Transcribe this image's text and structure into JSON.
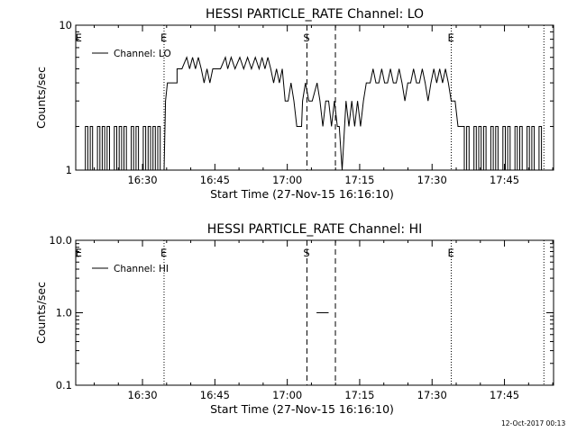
{
  "footer": {
    "timestamp": "12-Oct-2017 00:13"
  },
  "chart_data": [
    {
      "type": "line",
      "title": "HESSI PARTICLE_RATE Channel: LO",
      "xlabel": "Start Time (27-Nov-15 16:16:10)",
      "ylabel": "Counts/sec",
      "x_unit": "minutes after 16:16:10",
      "xlim": [
        0,
        99
      ],
      "ylim": [
        1,
        10
      ],
      "yscale": "log",
      "x_ticks": [
        {
          "x": 13.83,
          "label": "16:30"
        },
        {
          "x": 28.83,
          "label": "16:45"
        },
        {
          "x": 43.83,
          "label": "17:00"
        },
        {
          "x": 58.83,
          "label": "17:15"
        },
        {
          "x": 73.83,
          "label": "17:30"
        },
        {
          "x": 88.83,
          "label": "17:45"
        }
      ],
      "y_ticks": [
        {
          "y": 1,
          "label": "1"
        },
        {
          "y": 10,
          "label": "10"
        }
      ],
      "legend": {
        "position": "top-left",
        "entries": [
          "Channel: LO"
        ]
      },
      "markers": [
        {
          "x": 18.3,
          "style": "dotted",
          "label": "E"
        },
        {
          "x": 47.9,
          "style": "dashed",
          "label": "S"
        },
        {
          "x": 53.8,
          "style": "dashed",
          "label": ""
        },
        {
          "x": 77.8,
          "style": "dotted",
          "label": "E"
        },
        {
          "x": 97.0,
          "style": "dotted",
          "label": ""
        }
      ],
      "edge_labels": [
        {
          "x": 0.3,
          "label": "E"
        }
      ],
      "series": [
        {
          "name": "Channel: LO",
          "values": [
            [
              0,
              1
            ],
            [
              2,
              1
            ],
            [
              2,
              2
            ],
            [
              2.5,
              2
            ],
            [
              2.5,
              1
            ],
            [
              3,
              1
            ],
            [
              3,
              2
            ],
            [
              3.5,
              2
            ],
            [
              3.5,
              1
            ],
            [
              4.5,
              1
            ],
            [
              4.5,
              2
            ],
            [
              5,
              2
            ],
            [
              5,
              1
            ],
            [
              5.5,
              1
            ],
            [
              5.5,
              2
            ],
            [
              6,
              2
            ],
            [
              6,
              1
            ],
            [
              6.5,
              1
            ],
            [
              6.5,
              2
            ],
            [
              7,
              2
            ],
            [
              7,
              1
            ],
            [
              8,
              1
            ],
            [
              8,
              2
            ],
            [
              8.5,
              2
            ],
            [
              8.5,
              1
            ],
            [
              9,
              1
            ],
            [
              9,
              2
            ],
            [
              9.5,
              2
            ],
            [
              9.5,
              1
            ],
            [
              10,
              1
            ],
            [
              10,
              2
            ],
            [
              10.5,
              2
            ],
            [
              10.5,
              1
            ],
            [
              11.5,
              1
            ],
            [
              11.5,
              2
            ],
            [
              12,
              2
            ],
            [
              12,
              1
            ],
            [
              12.5,
              1
            ],
            [
              12.5,
              2
            ],
            [
              13,
              2
            ],
            [
              13,
              1
            ],
            [
              14,
              1
            ],
            [
              14,
              2
            ],
            [
              14.5,
              2
            ],
            [
              14.5,
              1
            ],
            [
              15,
              1
            ],
            [
              15,
              2
            ],
            [
              15.5,
              2
            ],
            [
              15.5,
              1
            ],
            [
              16,
              1
            ],
            [
              16,
              2
            ],
            [
              16.5,
              2
            ],
            [
              16.5,
              1
            ],
            [
              17,
              1
            ],
            [
              17,
              2
            ],
            [
              17.5,
              2
            ],
            [
              17.5,
              1
            ],
            [
              18,
              1
            ],
            [
              18.3,
              1
            ],
            [
              18.6,
              3
            ],
            [
              19,
              4
            ],
            [
              21,
              4
            ],
            [
              21,
              5
            ],
            [
              22,
              5
            ],
            [
              23,
              6
            ],
            [
              23.6,
              5
            ],
            [
              24.2,
              6
            ],
            [
              24.8,
              5
            ],
            [
              25.4,
              6
            ],
            [
              26,
              5
            ],
            [
              26.6,
              4
            ],
            [
              27.2,
              5
            ],
            [
              27.8,
              4
            ],
            [
              28.4,
              5
            ],
            [
              30,
              5
            ],
            [
              31,
              6
            ],
            [
              31.5,
              5
            ],
            [
              32.2,
              6
            ],
            [
              33,
              5
            ],
            [
              34,
              6
            ],
            [
              34.8,
              5
            ],
            [
              35.6,
              6
            ],
            [
              36.4,
              5
            ],
            [
              37.2,
              6
            ],
            [
              38,
              5
            ],
            [
              38.6,
              6
            ],
            [
              39.2,
              5
            ],
            [
              39.8,
              6
            ],
            [
              40.4,
              5
            ],
            [
              41,
              4
            ],
            [
              41.6,
              5
            ],
            [
              42.2,
              4
            ],
            [
              42.8,
              5
            ],
            [
              43.4,
              3
            ],
            [
              44,
              3
            ],
            [
              44.6,
              4
            ],
            [
              45.2,
              3
            ],
            [
              45.8,
              2
            ],
            [
              46.8,
              2
            ],
            [
              47,
              3
            ],
            [
              47.6,
              4
            ],
            [
              48.3,
              3
            ],
            [
              49,
              3
            ],
            [
              50,
              4
            ],
            [
              50.6,
              3
            ],
            [
              51.2,
              2
            ],
            [
              51.8,
              3
            ],
            [
              52.4,
              3
            ],
            [
              53,
              2
            ],
            [
              53.6,
              3
            ],
            [
              54.2,
              2
            ],
            [
              54.6,
              2
            ],
            [
              55.2,
              1
            ],
            [
              56,
              3
            ],
            [
              56.6,
              2
            ],
            [
              57.2,
              3
            ],
            [
              57.8,
              2
            ],
            [
              58.4,
              3
            ],
            [
              59,
              2
            ],
            [
              59.6,
              3
            ],
            [
              60.2,
              4
            ],
            [
              61,
              4
            ],
            [
              61.6,
              5
            ],
            [
              62.2,
              4
            ],
            [
              62.8,
              4
            ],
            [
              63.4,
              5
            ],
            [
              64,
              4
            ],
            [
              64.6,
              4
            ],
            [
              65.2,
              5
            ],
            [
              65.8,
              4
            ],
            [
              66.4,
              4
            ],
            [
              67,
              5
            ],
            [
              67.6,
              4
            ],
            [
              68.2,
              3
            ],
            [
              68.8,
              4
            ],
            [
              69.4,
              4
            ],
            [
              70,
              5
            ],
            [
              70.6,
              4
            ],
            [
              71.2,
              4
            ],
            [
              71.8,
              5
            ],
            [
              72.4,
              4
            ],
            [
              73,
              3
            ],
            [
              73.6,
              4
            ],
            [
              74.2,
              5
            ],
            [
              74.8,
              4
            ],
            [
              75.4,
              5
            ],
            [
              76,
              4
            ],
            [
              76.6,
              5
            ],
            [
              77.2,
              4
            ],
            [
              77.8,
              3
            ],
            [
              78.6,
              3
            ],
            [
              79.2,
              2
            ],
            [
              80,
              2
            ],
            [
              80.5,
              2
            ],
            [
              80.5,
              1
            ],
            [
              81,
              1
            ],
            [
              81,
              2
            ],
            [
              81.5,
              2
            ],
            [
              81.5,
              1
            ],
            [
              82.5,
              1
            ],
            [
              82.5,
              2
            ],
            [
              83,
              2
            ],
            [
              83,
              1
            ],
            [
              83.5,
              1
            ],
            [
              83.5,
              2
            ],
            [
              84,
              2
            ],
            [
              84,
              1
            ],
            [
              84.5,
              1
            ],
            [
              84.5,
              2
            ],
            [
              85,
              2
            ],
            [
              85,
              1
            ],
            [
              86,
              1
            ],
            [
              86,
              2
            ],
            [
              86.5,
              2
            ],
            [
              86.5,
              1
            ],
            [
              87,
              1
            ],
            [
              87,
              2
            ],
            [
              87.5,
              2
            ],
            [
              87.5,
              1
            ],
            [
              88.5,
              1
            ],
            [
              88.5,
              2
            ],
            [
              89,
              2
            ],
            [
              89,
              1
            ],
            [
              89.5,
              1
            ],
            [
              89.5,
              2
            ],
            [
              90,
              2
            ],
            [
              90,
              1
            ],
            [
              91,
              1
            ],
            [
              91,
              2
            ],
            [
              91.5,
              2
            ],
            [
              91.5,
              1
            ],
            [
              92,
              1
            ],
            [
              92,
              2
            ],
            [
              92.5,
              2
            ],
            [
              92.5,
              1
            ],
            [
              93.5,
              1
            ],
            [
              93.5,
              2
            ],
            [
              94,
              2
            ],
            [
              94,
              1
            ],
            [
              94.5,
              1
            ],
            [
              94.5,
              2
            ],
            [
              95,
              2
            ],
            [
              95,
              1
            ],
            [
              96,
              1
            ],
            [
              96,
              2
            ],
            [
              96.5,
              2
            ],
            [
              96.5,
              1
            ],
            [
              97,
              1
            ]
          ]
        }
      ]
    },
    {
      "type": "line",
      "title": "HESSI PARTICLE_RATE Channel: HI",
      "xlabel": "Start Time (27-Nov-15 16:16:10)",
      "ylabel": "Counts/sec",
      "x_unit": "minutes after 16:16:10",
      "xlim": [
        0,
        99
      ],
      "ylim": [
        0.1,
        10
      ],
      "yscale": "log",
      "x_ticks": [
        {
          "x": 13.83,
          "label": "16:30"
        },
        {
          "x": 28.83,
          "label": "16:45"
        },
        {
          "x": 43.83,
          "label": "17:00"
        },
        {
          "x": 58.83,
          "label": "17:15"
        },
        {
          "x": 73.83,
          "label": "17:30"
        },
        {
          "x": 88.83,
          "label": "17:45"
        }
      ],
      "y_ticks": [
        {
          "y": 0.1,
          "label": "0.1"
        },
        {
          "y": 1,
          "label": "1.0"
        },
        {
          "y": 10,
          "label": "10.0"
        }
      ],
      "legend": {
        "position": "top-left",
        "entries": [
          "Channel: HI"
        ]
      },
      "markers": [
        {
          "x": 18.3,
          "style": "dotted",
          "label": "E"
        },
        {
          "x": 47.9,
          "style": "dashed",
          "label": "S"
        },
        {
          "x": 53.8,
          "style": "dashed",
          "label": ""
        },
        {
          "x": 77.8,
          "style": "dotted",
          "label": "E"
        },
        {
          "x": 97.0,
          "style": "dotted",
          "label": ""
        }
      ],
      "edge_labels": [
        {
          "x": 0.3,
          "label": "E"
        }
      ],
      "series": [
        {
          "name": "Channel: HI",
          "values": [
            [
              49.9,
              1
            ],
            [
              52.4,
              1
            ]
          ]
        }
      ]
    }
  ]
}
